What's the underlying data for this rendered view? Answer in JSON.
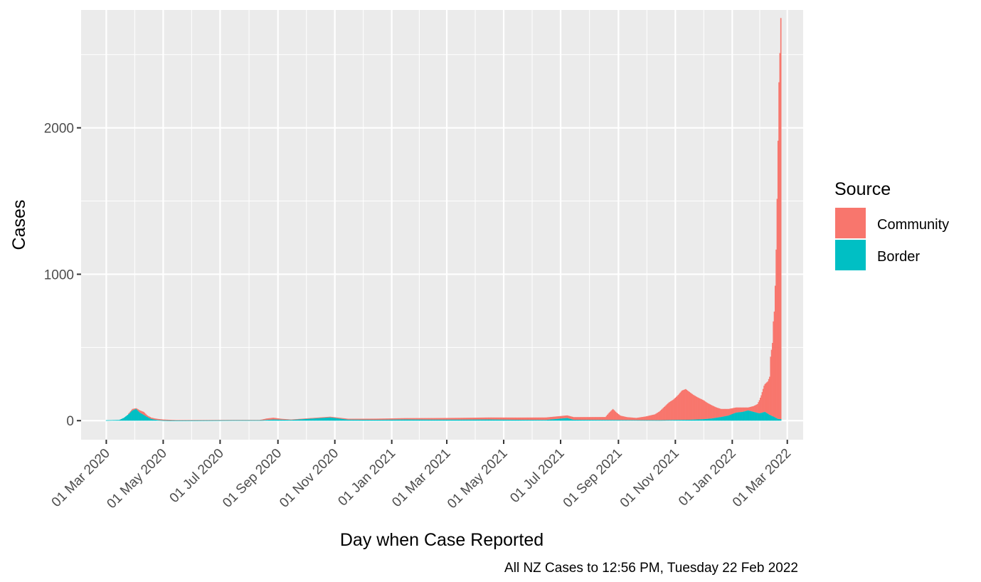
{
  "chart_data": {
    "type": "bar",
    "stacked": true,
    "xlabel": "Day when Case Reported",
    "ylabel": "Cases",
    "caption": "All NZ  Cases to 12:56 PM, Tuesday 22 Feb 2022",
    "ylim": [
      -130,
      2805
    ],
    "xlim": [
      "2020-02-03",
      "2022-03-18"
    ],
    "y_ticks": [
      0,
      1000,
      2000
    ],
    "y_tick_labels": [
      "0",
      "1000",
      "2000"
    ],
    "y_minor_ticks": [
      500,
      1500,
      2500
    ],
    "x_ticks": [
      "2020-03-01",
      "2020-05-01",
      "2020-07-01",
      "2020-09-01",
      "2020-11-01",
      "2021-01-01",
      "2021-03-01",
      "2021-05-01",
      "2021-07-01",
      "2021-09-01",
      "2021-11-01",
      "2022-01-01",
      "2022-03-01"
    ],
    "x_tick_labels": [
      "01 Mar 2020",
      "01 May 2020",
      "01 Jul 2020",
      "01 Sep 2020",
      "01 Nov 2020",
      "01 Jan 2021",
      "01 Mar 2021",
      "01 May 2021",
      "01 Jul 2021",
      "01 Sep 2021",
      "01 Nov 2021",
      "01 Jan 2022",
      "01 Mar 2022"
    ],
    "legend": {
      "title": "Source",
      "position": "right",
      "entries": [
        {
          "name": "Community",
          "color": "#F8766D"
        },
        {
          "name": "Border",
          "color": "#00BFC4"
        }
      ]
    },
    "colors": {
      "panel": "#EBEBEB",
      "grid": "#FFFFFF",
      "axis_text": "#4D4D4D"
    },
    "series": [
      {
        "name": "Border",
        "points": [
          [
            "2020-03-01",
            3
          ],
          [
            "2020-03-15",
            5
          ],
          [
            "2020-03-20",
            20
          ],
          [
            "2020-03-25",
            45
          ],
          [
            "2020-03-29",
            70
          ],
          [
            "2020-04-02",
            80
          ],
          [
            "2020-04-06",
            55
          ],
          [
            "2020-04-10",
            40
          ],
          [
            "2020-04-14",
            25
          ],
          [
            "2020-04-18",
            12
          ],
          [
            "2020-04-22",
            7
          ],
          [
            "2020-04-26",
            4
          ],
          [
            "2020-05-01",
            2
          ],
          [
            "2020-05-10",
            1
          ],
          [
            "2020-06-20",
            2
          ],
          [
            "2020-07-15",
            3
          ],
          [
            "2020-08-15",
            3
          ],
          [
            "2020-08-27",
            8
          ],
          [
            "2020-09-15",
            5
          ],
          [
            "2020-10-27",
            22
          ],
          [
            "2020-11-15",
            7
          ],
          [
            "2020-12-15",
            6
          ],
          [
            "2021-01-15",
            8
          ],
          [
            "2021-02-15",
            7
          ],
          [
            "2021-03-15",
            7
          ],
          [
            "2021-04-15",
            8
          ],
          [
            "2021-05-15",
            6
          ],
          [
            "2021-06-15",
            5
          ],
          [
            "2021-07-08",
            18
          ],
          [
            "2021-07-15",
            6
          ],
          [
            "2021-08-15",
            5
          ],
          [
            "2021-09-15",
            4
          ],
          [
            "2021-10-15",
            3
          ],
          [
            "2021-11-01",
            5
          ],
          [
            "2021-11-15",
            6
          ],
          [
            "2021-12-01",
            10
          ],
          [
            "2021-12-10",
            15
          ],
          [
            "2021-12-20",
            25
          ],
          [
            "2021-12-28",
            35
          ],
          [
            "2022-01-05",
            55
          ],
          [
            "2022-01-12",
            60
          ],
          [
            "2022-01-18",
            70
          ],
          [
            "2022-01-24",
            60
          ],
          [
            "2022-01-30",
            50
          ],
          [
            "2022-02-05",
            60
          ],
          [
            "2022-02-10",
            40
          ],
          [
            "2022-02-15",
            25
          ],
          [
            "2022-02-19",
            12
          ],
          [
            "2022-02-22",
            10
          ]
        ]
      },
      {
        "name": "Community",
        "points": [
          [
            "2020-03-25",
            5
          ],
          [
            "2020-03-29",
            10
          ],
          [
            "2020-04-02",
            5
          ],
          [
            "2020-04-06",
            15
          ],
          [
            "2020-04-10",
            20
          ],
          [
            "2020-04-14",
            10
          ],
          [
            "2020-05-15",
            3
          ],
          [
            "2020-08-12",
            2
          ],
          [
            "2020-08-20",
            10
          ],
          [
            "2020-08-27",
            12
          ],
          [
            "2020-09-05",
            6
          ],
          [
            "2020-09-15",
            3
          ],
          [
            "2021-08-18",
            20
          ],
          [
            "2021-08-22",
            50
          ],
          [
            "2021-08-26",
            75
          ],
          [
            "2021-08-30",
            50
          ],
          [
            "2021-09-03",
            30
          ],
          [
            "2021-09-10",
            20
          ],
          [
            "2021-09-20",
            15
          ],
          [
            "2021-09-30",
            25
          ],
          [
            "2021-10-10",
            40
          ],
          [
            "2021-10-15",
            60
          ],
          [
            "2021-10-20",
            90
          ],
          [
            "2021-10-25",
            120
          ],
          [
            "2021-10-30",
            140
          ],
          [
            "2021-11-04",
            170
          ],
          [
            "2021-11-08",
            200
          ],
          [
            "2021-11-12",
            210
          ],
          [
            "2021-11-16",
            190
          ],
          [
            "2021-11-20",
            170
          ],
          [
            "2021-11-25",
            150
          ],
          [
            "2021-12-01",
            130
          ],
          [
            "2021-12-05",
            110
          ],
          [
            "2021-12-10",
            90
          ],
          [
            "2021-12-15",
            70
          ],
          [
            "2021-12-20",
            55
          ],
          [
            "2021-12-28",
            45
          ],
          [
            "2022-01-05",
            35
          ],
          [
            "2022-01-12",
            30
          ],
          [
            "2022-01-18",
            20
          ],
          [
            "2022-01-24",
            40
          ],
          [
            "2022-01-28",
            60
          ],
          [
            "2022-02-01",
            120
          ],
          [
            "2022-02-04",
            180
          ],
          [
            "2022-02-06",
            200
          ],
          [
            "2022-02-08",
            220
          ],
          [
            "2022-02-10",
            260
          ],
          [
            "2022-02-11",
            400
          ],
          [
            "2022-02-13",
            500
          ],
          [
            "2022-02-14",
            650
          ],
          [
            "2022-02-15",
            720
          ],
          [
            "2022-02-16",
            900
          ],
          [
            "2022-02-17",
            1150
          ],
          [
            "2022-02-18",
            1500
          ],
          [
            "2022-02-19",
            1900
          ],
          [
            "2022-02-20",
            2300
          ],
          [
            "2022-02-21",
            2500
          ],
          [
            "2022-02-22",
            2740
          ]
        ]
      }
    ]
  }
}
